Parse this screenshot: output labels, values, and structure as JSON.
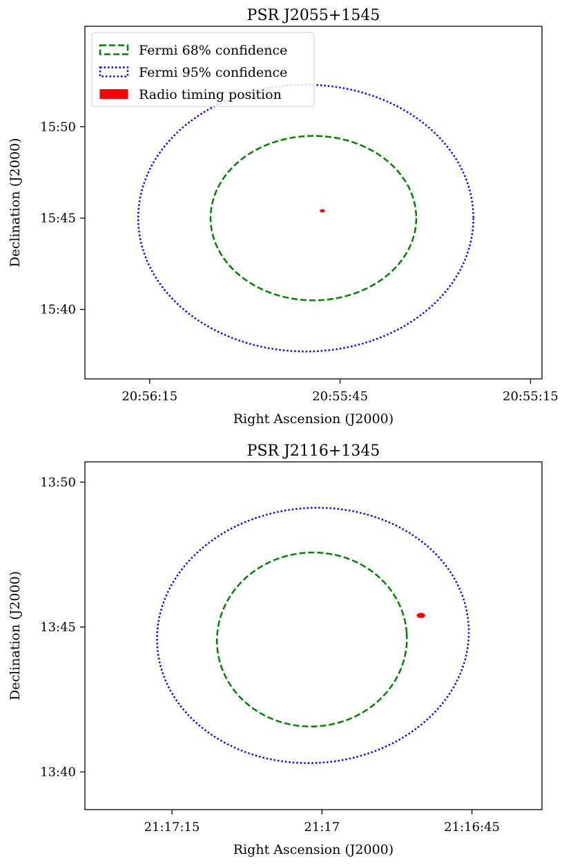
{
  "chart_data": [
    {
      "type": "scatter",
      "title": "PSR J2055+1545",
      "xlabel": "Right Ascension (J2000)",
      "ylabel": "Declination (J2000)",
      "x_units": "seconds of RA (time) after 20:55:00",
      "y_units": "arcminutes of Dec after 15:00",
      "xlim": [
        10.1,
        46.1
      ],
      "ylim": [
        36.2,
        55.5
      ],
      "x_inverted": true,
      "xticks": [
        {
          "value": 41.0,
          "label": "20:56:15"
        },
        {
          "value": 26.0,
          "label": "20:55:45"
        },
        {
          "value": 11.0,
          "label": "20:55:15"
        }
      ],
      "yticks": [
        {
          "value": 40,
          "label": "15:40"
        },
        {
          "value": 45,
          "label": "15:45"
        },
        {
          "value": 50,
          "label": "15:50"
        }
      ],
      "ellipses": [
        {
          "name": "Fermi 68% confidence",
          "center": [
            28.1,
            45.0
          ],
          "semi_x": 8.1,
          "semi_y": 4.5,
          "color": "#008000",
          "style": "dashed"
        },
        {
          "name": "Fermi 95% confidence",
          "center": [
            28.7,
            45.0
          ],
          "semi_x": 13.2,
          "semi_y": 7.3,
          "color": "#0000ff",
          "style": "dotted"
        }
      ],
      "points": [
        {
          "name": "Radio timing position",
          "x": 27.4,
          "y": 45.4,
          "color": "#ff0000",
          "semi_x": 0.18,
          "semi_y": 0.07
        }
      ],
      "legend": {
        "location": "upper-left",
        "entries": [
          {
            "label": "Fermi 68% confidence",
            "color": "#008000",
            "style": "dashed"
          },
          {
            "label": "Fermi 95% confidence",
            "color": "#0000ff",
            "style": "dotted"
          },
          {
            "label": "Radio timing position",
            "color": "#ff0000",
            "style": "filled"
          }
        ]
      },
      "grid": false
    },
    {
      "type": "scatter",
      "title": "PSR J2116+1345",
      "xlabel": "Right Ascension (J2000)",
      "ylabel": "Declination (J2000)",
      "x_units": "seconds of RA (time) after 21:16:00",
      "y_units": "arcminutes of Dec after 13:00",
      "xlim": [
        38.0,
        83.7
      ],
      "ylim": [
        38.7,
        50.7
      ],
      "x_inverted": true,
      "xticks": [
        {
          "value": 75.0,
          "label": "21:17:15"
        },
        {
          "value": 60.0,
          "label": "21:17"
        },
        {
          "value": 45.0,
          "label": "21:16:45"
        }
      ],
      "yticks": [
        {
          "value": 40,
          "label": "13:40"
        },
        {
          "value": 45,
          "label": "13:45"
        },
        {
          "value": 50,
          "label": "13:50"
        }
      ],
      "ellipses": [
        {
          "name": "Fermi 68% confidence",
          "center": [
            61.0,
            44.57
          ],
          "semi_x": 9.5,
          "semi_y": 3.0,
          "angle": -4,
          "color": "#008000",
          "style": "dashed"
        },
        {
          "name": "Fermi 95% confidence",
          "center": [
            60.9,
            44.71
          ],
          "semi_x": 15.6,
          "semi_y": 4.4,
          "angle": -4,
          "color": "#0000ff",
          "style": "dotted"
        }
      ],
      "points": [
        {
          "name": "Radio timing position",
          "x": 50.1,
          "y": 45.4,
          "color": "#ff0000",
          "semi_x": 0.4,
          "semi_y": 0.08
        }
      ],
      "legend": null,
      "grid": false
    }
  ]
}
